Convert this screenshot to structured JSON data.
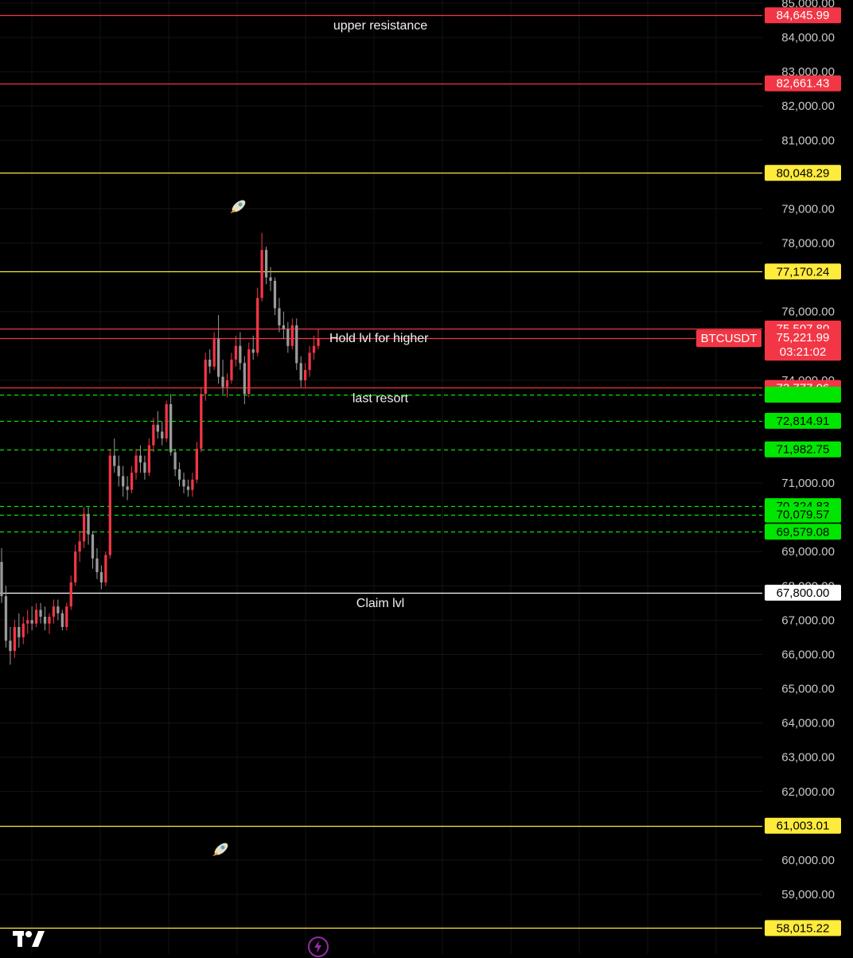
{
  "chart_data": {
    "type": "candlestick",
    "symbol": "BTCUSDT",
    "countdown": "03:21:02",
    "ylim": [
      57700,
      85000
    ],
    "y_ticks": [
      {
        "value": 85000,
        "label": "85,000.00"
      },
      {
        "value": 84000,
        "label": "84,000.00"
      },
      {
        "value": 83000,
        "label": "83,000.00"
      },
      {
        "value": 82000,
        "label": "82,000.00"
      },
      {
        "value": 81000,
        "label": "81,000.00"
      },
      {
        "value": 79000,
        "label": "79,000.00"
      },
      {
        "value": 78000,
        "label": "78,000.00"
      },
      {
        "value": 76000,
        "label": "76,000.00"
      },
      {
        "value": 74000,
        "label": "74,000.00"
      },
      {
        "value": 71000,
        "label": "71,000.00"
      },
      {
        "value": 69000,
        "label": "69,000.00"
      },
      {
        "value": 68000,
        "label": "68,000.00"
      },
      {
        "value": 67000,
        "label": "67,000.00"
      },
      {
        "value": 66000,
        "label": "66,000.00"
      },
      {
        "value": 65000,
        "label": "65,000.00"
      },
      {
        "value": 64000,
        "label": "64,000.00"
      },
      {
        "value": 63000,
        "label": "63,000.00"
      },
      {
        "value": 62000,
        "label": "62,000.00"
      },
      {
        "value": 60000,
        "label": "60,000.00"
      },
      {
        "value": 59000,
        "label": "59,000.00"
      }
    ],
    "levels": [
      {
        "value": 84645.99,
        "label": "84,645.99",
        "color": "#f23645",
        "style": "solid",
        "tag_text": "#ffffff"
      },
      {
        "value": 82661.43,
        "label": "82,661.43",
        "color": "#f23645",
        "style": "solid",
        "tag_text": "#ffffff"
      },
      {
        "value": 80048.29,
        "label": "80,048.29",
        "color": "#ffeb3b",
        "style": "solid",
        "tag_text": "#000000"
      },
      {
        "value": 77170.24,
        "label": "77,170.24",
        "color": "#ffeb3b",
        "style": "solid",
        "tag_text": "#000000"
      },
      {
        "value": 75507.8,
        "label": "75,507.80",
        "color": "#f23645",
        "style": "solid",
        "tag_text": "#ffffff"
      },
      {
        "value": 73777.06,
        "label": "73,777.06",
        "color": "#f23645",
        "style": "solid",
        "tag_text": "#ffffff"
      },
      {
        "value": 73580,
        "label": "",
        "color": "#00e600",
        "style": "dashed",
        "tag_text": "#000000"
      },
      {
        "value": 72814.91,
        "label": "72,814.91",
        "color": "#00e600",
        "style": "dashed",
        "tag_text": "#000000"
      },
      {
        "value": 71982.75,
        "label": "71,982.75",
        "color": "#00e600",
        "style": "dashed",
        "tag_text": "#000000"
      },
      {
        "value": 70324.83,
        "label": "70,324.83",
        "color": "#00e600",
        "style": "dashed",
        "tag_text": "#000000"
      },
      {
        "value": 70079.57,
        "label": "70,079.57",
        "color": "#00e600",
        "style": "dashed",
        "tag_text": "#000000"
      },
      {
        "value": 69579.08,
        "label": "69,579.08",
        "color": "#00e600",
        "style": "dashed",
        "tag_text": "#000000"
      },
      {
        "value": 67800.0,
        "label": "67,800.00",
        "color": "#ffffff",
        "style": "solid",
        "tag_text": "#000000"
      },
      {
        "value": 61003.01,
        "label": "61,003.01",
        "color": "#ffeb3b",
        "style": "solid",
        "tag_text": "#000000"
      },
      {
        "value": 58015.22,
        "label": "58,015.22",
        "color": "#ffeb3b",
        "style": "solid",
        "tag_text": "#000000"
      }
    ],
    "current_price": {
      "value": 75221.99,
      "label": "75,221.99",
      "color": "#f23645"
    },
    "annotations": [
      {
        "text": "upper resistance",
        "value": 84645.99,
        "position": "below-line"
      },
      {
        "text": "Hold lvl for higher",
        "value": 75221.99,
        "position": "on-line"
      },
      {
        "text": "last resort",
        "value": 73777.06,
        "position": "below-line"
      },
      {
        "text": "Claim lvl",
        "value": 67800.0,
        "position": "below-line"
      }
    ],
    "candles": [
      {
        "o": 68700,
        "h": 69100,
        "l": 67500,
        "c": 67700
      },
      {
        "o": 67700,
        "h": 68000,
        "l": 66200,
        "c": 66400
      },
      {
        "o": 66400,
        "h": 66800,
        "l": 65700,
        "c": 66100
      },
      {
        "o": 66100,
        "h": 67000,
        "l": 65900,
        "c": 66800
      },
      {
        "o": 66800,
        "h": 67200,
        "l": 66200,
        "c": 66500
      },
      {
        "o": 66500,
        "h": 67100,
        "l": 66300,
        "c": 66900
      },
      {
        "o": 66900,
        "h": 67300,
        "l": 66600,
        "c": 67000
      },
      {
        "o": 67000,
        "h": 67400,
        "l": 66700,
        "c": 66900
      },
      {
        "o": 66900,
        "h": 67500,
        "l": 66800,
        "c": 67300
      },
      {
        "o": 67300,
        "h": 67500,
        "l": 66900,
        "c": 67100
      },
      {
        "o": 67100,
        "h": 67400,
        "l": 66700,
        "c": 66900
      },
      {
        "o": 66900,
        "h": 67200,
        "l": 66600,
        "c": 67100
      },
      {
        "o": 67100,
        "h": 67600,
        "l": 66900,
        "c": 67400
      },
      {
        "o": 67400,
        "h": 67600,
        "l": 67000,
        "c": 67200
      },
      {
        "o": 67200,
        "h": 67300,
        "l": 66700,
        "c": 66800
      },
      {
        "o": 66800,
        "h": 67500,
        "l": 66700,
        "c": 67400
      },
      {
        "o": 67400,
        "h": 68300,
        "l": 67300,
        "c": 68100
      },
      {
        "o": 68100,
        "h": 69200,
        "l": 68000,
        "c": 69000
      },
      {
        "o": 69000,
        "h": 69600,
        "l": 68700,
        "c": 69300
      },
      {
        "o": 69300,
        "h": 70300,
        "l": 69100,
        "c": 70100
      },
      {
        "o": 70100,
        "h": 70300,
        "l": 69200,
        "c": 69500
      },
      {
        "o": 69500,
        "h": 69600,
        "l": 68500,
        "c": 68800
      },
      {
        "o": 68800,
        "h": 69100,
        "l": 68200,
        "c": 68400
      },
      {
        "o": 68400,
        "h": 68600,
        "l": 67900,
        "c": 68100
      },
      {
        "o": 68100,
        "h": 69000,
        "l": 68000,
        "c": 68900
      },
      {
        "o": 68900,
        "h": 72000,
        "l": 68800,
        "c": 71800
      },
      {
        "o": 71800,
        "h": 72300,
        "l": 71300,
        "c": 71500
      },
      {
        "o": 71500,
        "h": 71800,
        "l": 70900,
        "c": 71200
      },
      {
        "o": 71200,
        "h": 71500,
        "l": 70600,
        "c": 70900
      },
      {
        "o": 70900,
        "h": 71200,
        "l": 70500,
        "c": 70800
      },
      {
        "o": 70800,
        "h": 71500,
        "l": 70700,
        "c": 71300
      },
      {
        "o": 71300,
        "h": 72000,
        "l": 71100,
        "c": 71800
      },
      {
        "o": 71800,
        "h": 72100,
        "l": 71300,
        "c": 71600
      },
      {
        "o": 71600,
        "h": 71800,
        "l": 71100,
        "c": 71300
      },
      {
        "o": 71300,
        "h": 72300,
        "l": 71200,
        "c": 72100
      },
      {
        "o": 72100,
        "h": 72900,
        "l": 71900,
        "c": 72700
      },
      {
        "o": 72700,
        "h": 73100,
        "l": 72300,
        "c": 72500
      },
      {
        "o": 72500,
        "h": 72800,
        "l": 72100,
        "c": 72300
      },
      {
        "o": 72300,
        "h": 73400,
        "l": 72200,
        "c": 73300
      },
      {
        "o": 73300,
        "h": 73600,
        "l": 71800,
        "c": 71900
      },
      {
        "o": 71900,
        "h": 72000,
        "l": 71200,
        "c": 71400
      },
      {
        "o": 71400,
        "h": 71600,
        "l": 70900,
        "c": 71100
      },
      {
        "o": 71100,
        "h": 71300,
        "l": 70700,
        "c": 70900
      },
      {
        "o": 70900,
        "h": 71100,
        "l": 70600,
        "c": 70800
      },
      {
        "o": 70800,
        "h": 71300,
        "l": 70600,
        "c": 71100
      },
      {
        "o": 71100,
        "h": 72200,
        "l": 71000,
        "c": 72000
      },
      {
        "o": 72000,
        "h": 73800,
        "l": 71900,
        "c": 73600
      },
      {
        "o": 73600,
        "h": 74800,
        "l": 73400,
        "c": 74600
      },
      {
        "o": 74600,
        "h": 74900,
        "l": 74200,
        "c": 74400
      },
      {
        "o": 74400,
        "h": 75400,
        "l": 74300,
        "c": 75200
      },
      {
        "o": 75200,
        "h": 75900,
        "l": 73900,
        "c": 74100
      },
      {
        "o": 74100,
        "h": 74600,
        "l": 73600,
        "c": 73800
      },
      {
        "o": 73800,
        "h": 74200,
        "l": 73500,
        "c": 74000
      },
      {
        "o": 74000,
        "h": 74800,
        "l": 73900,
        "c": 74600
      },
      {
        "o": 74600,
        "h": 75300,
        "l": 74400,
        "c": 75000
      },
      {
        "o": 75000,
        "h": 75400,
        "l": 74300,
        "c": 74500
      },
      {
        "o": 74500,
        "h": 74700,
        "l": 73300,
        "c": 73600
      },
      {
        "o": 73600,
        "h": 75100,
        "l": 73500,
        "c": 74900
      },
      {
        "o": 74900,
        "h": 75300,
        "l": 74600,
        "c": 74800
      },
      {
        "o": 74800,
        "h": 76700,
        "l": 74700,
        "c": 76400
      },
      {
        "o": 76400,
        "h": 78300,
        "l": 76300,
        "c": 77800
      },
      {
        "o": 77800,
        "h": 77900,
        "l": 76800,
        "c": 77000
      },
      {
        "o": 77000,
        "h": 77300,
        "l": 76600,
        "c": 76900
      },
      {
        "o": 76900,
        "h": 77000,
        "l": 75900,
        "c": 76100
      },
      {
        "o": 76100,
        "h": 76400,
        "l": 75400,
        "c": 75600
      },
      {
        "o": 75600,
        "h": 76000,
        "l": 75200,
        "c": 75500
      },
      {
        "o": 75500,
        "h": 75700,
        "l": 74800,
        "c": 75000
      },
      {
        "o": 75000,
        "h": 75800,
        "l": 74900,
        "c": 75600
      },
      {
        "o": 75600,
        "h": 75800,
        "l": 74300,
        "c": 74500
      },
      {
        "o": 74500,
        "h": 74700,
        "l": 73800,
        "c": 74000
      },
      {
        "o": 74000,
        "h": 74500,
        "l": 73800,
        "c": 74300
      },
      {
        "o": 74300,
        "h": 75000,
        "l": 74100,
        "c": 74800
      },
      {
        "o": 74800,
        "h": 75300,
        "l": 74600,
        "c": 75000
      },
      {
        "o": 75000,
        "h": 75500,
        "l": 74900,
        "c": 75222
      }
    ]
  }
}
